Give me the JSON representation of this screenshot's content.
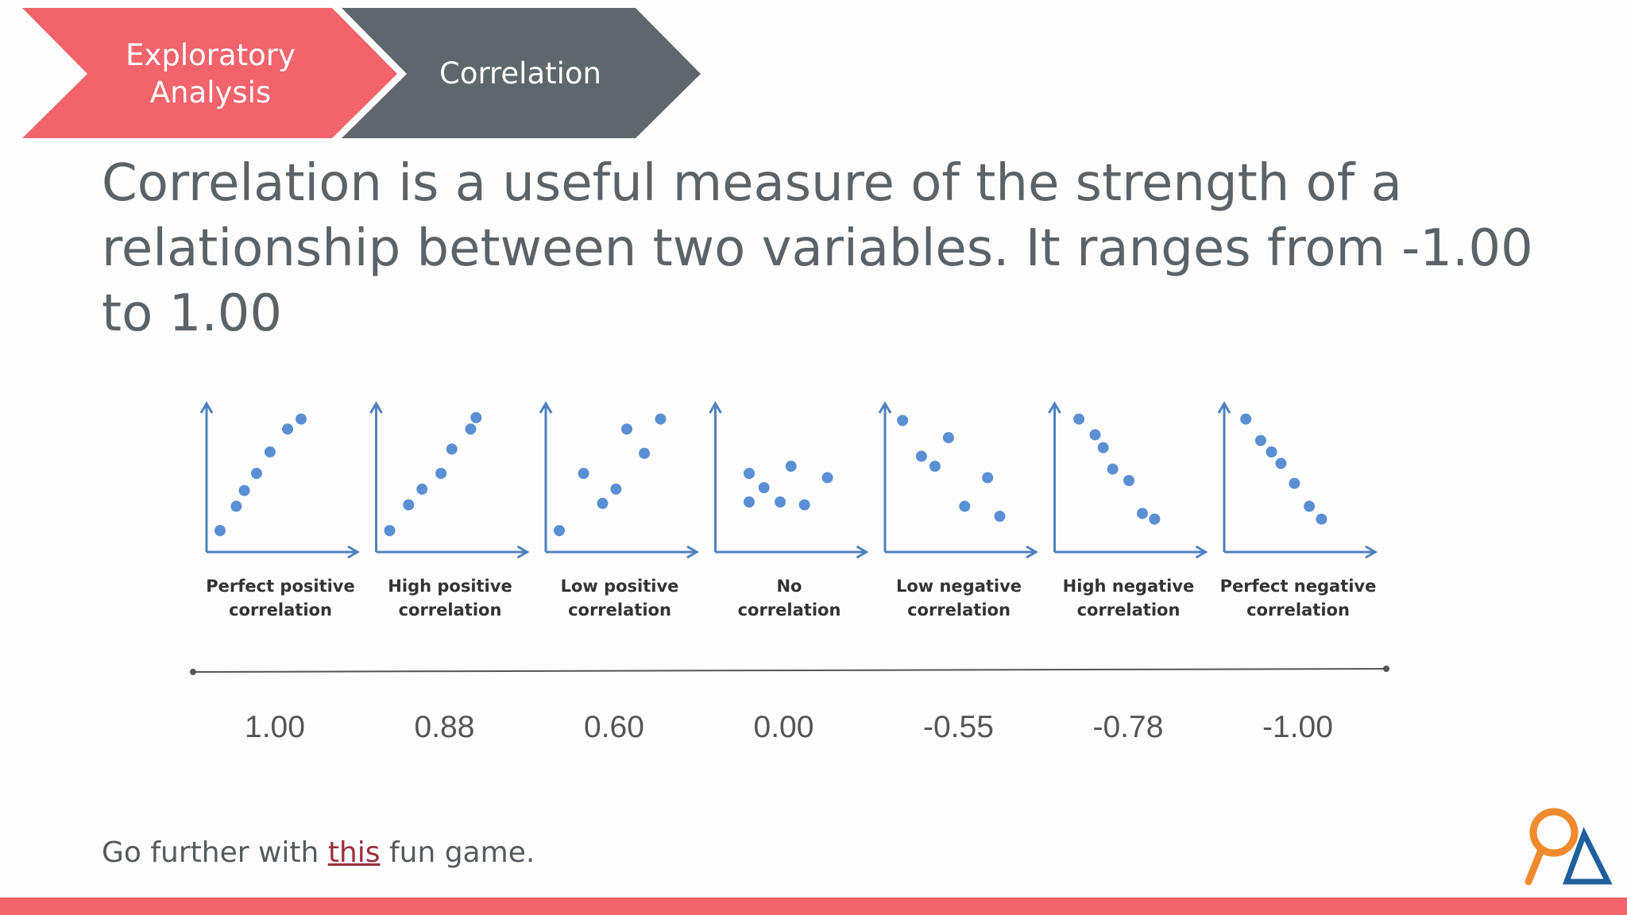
{
  "breadcrumb": {
    "step1_label": "Exploratory\nAnalysis",
    "step2_label": "Correlation",
    "step1_color": "#f2636b",
    "step2_color": "#5e676c"
  },
  "headline": "Correlation is a useful measure of the strength of a relationship between two variables.  It ranges from -1.00 to 1.00",
  "panels": [
    {
      "label_line1": "Perfect positive",
      "label_line2": "correlation",
      "value": "1.00",
      "points": [
        [
          0.1,
          0.15
        ],
        [
          0.22,
          0.32
        ],
        [
          0.28,
          0.43
        ],
        [
          0.37,
          0.55
        ],
        [
          0.47,
          0.7
        ],
        [
          0.6,
          0.86
        ],
        [
          0.7,
          0.93
        ]
      ]
    },
    {
      "label_line1": "High positive",
      "label_line2": "correlation",
      "value": "0.88",
      "points": [
        [
          0.1,
          0.15
        ],
        [
          0.24,
          0.33
        ],
        [
          0.34,
          0.44
        ],
        [
          0.48,
          0.55
        ],
        [
          0.56,
          0.72
        ],
        [
          0.7,
          0.86
        ],
        [
          0.74,
          0.94
        ]
      ]
    },
    {
      "label_line1": "Low positive",
      "label_line2": "correlation",
      "value": "0.60",
      "points": [
        [
          0.1,
          0.15
        ],
        [
          0.28,
          0.55
        ],
        [
          0.42,
          0.34
        ],
        [
          0.52,
          0.44
        ],
        [
          0.6,
          0.86
        ],
        [
          0.73,
          0.69
        ],
        [
          0.85,
          0.93
        ]
      ]
    },
    {
      "label_line1": "No",
      "label_line2": "correlation",
      "value": "0.00",
      "points": [
        [
          0.25,
          0.55
        ],
        [
          0.25,
          0.35
        ],
        [
          0.36,
          0.45
        ],
        [
          0.48,
          0.35
        ],
        [
          0.56,
          0.6
        ],
        [
          0.66,
          0.33
        ],
        [
          0.83,
          0.52
        ]
      ]
    },
    {
      "label_line1": "Low negative",
      "label_line2": "correlation",
      "value": "-0.55",
      "points": [
        [
          0.13,
          0.92
        ],
        [
          0.27,
          0.67
        ],
        [
          0.37,
          0.6
        ],
        [
          0.47,
          0.8
        ],
        [
          0.59,
          0.32
        ],
        [
          0.76,
          0.52
        ],
        [
          0.85,
          0.25
        ]
      ]
    },
    {
      "label_line1": "High negative",
      "label_line2": "correlation",
      "value": "-0.78",
      "points": [
        [
          0.18,
          0.93
        ],
        [
          0.3,
          0.82
        ],
        [
          0.36,
          0.73
        ],
        [
          0.43,
          0.58
        ],
        [
          0.55,
          0.5
        ],
        [
          0.65,
          0.27
        ],
        [
          0.74,
          0.23
        ]
      ]
    },
    {
      "label_line1": "Perfect negative",
      "label_line2": "correlation",
      "value": "-1.00",
      "points": [
        [
          0.16,
          0.93
        ],
        [
          0.27,
          0.78
        ],
        [
          0.35,
          0.7
        ],
        [
          0.42,
          0.62
        ],
        [
          0.52,
          0.48
        ],
        [
          0.63,
          0.32
        ],
        [
          0.72,
          0.23
        ]
      ]
    }
  ],
  "footer": {
    "prefix": "Go further with ",
    "link_text": "this",
    "suffix": " fun game."
  },
  "colors": {
    "axis": "#4f81bd",
    "dot": "#5b8fd4",
    "accent": "#f2636b",
    "logo_orange": "#f08a2c",
    "logo_blue": "#1f5f9c"
  }
}
